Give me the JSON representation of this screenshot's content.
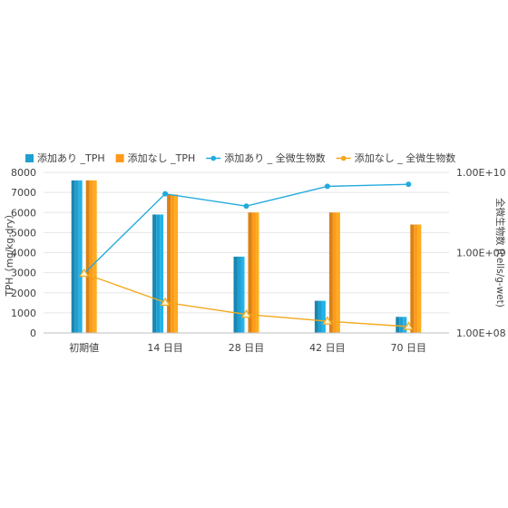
{
  "chart_data": {
    "type": "bar",
    "categories": [
      "初期値",
      "14 日目",
      "28 日目",
      "42 日目",
      "70 日目"
    ],
    "series": [
      {
        "name": "添加あり _TPH",
        "type": "bar",
        "axis": "left",
        "color": "#1f9fd0",
        "values": [
          7600,
          5900,
          3800,
          1600,
          800
        ]
      },
      {
        "name": "添加なし _TPH",
        "type": "bar",
        "axis": "left",
        "color": "#ff9a1a",
        "values": [
          7600,
          6900,
          6000,
          6000,
          5400
        ]
      },
      {
        "name": "添加あり _ 全微生物数",
        "type": "line",
        "axis": "right",
        "color": "#22aadd",
        "marker": "circle",
        "values": [
          550000000,
          5400000000,
          3800000000,
          6700000000,
          7100000000
        ]
      },
      {
        "name": "添加なし _ 全微生物数",
        "type": "line",
        "axis": "right",
        "color": "#f2a81d",
        "marker": "triangle",
        "values": [
          550000000,
          240000000,
          170000000,
          140000000,
          120000000
        ]
      }
    ],
    "y_left": {
      "label": "TPH（mg/kg-dry）",
      "ylim": [
        0,
        8000
      ],
      "ticks": [
        "0",
        "1000",
        "2000",
        "3000",
        "4000",
        "5000",
        "6000",
        "7000",
        "8000"
      ]
    },
    "y_right": {
      "label": "全微生物数 (cells/g-wet)",
      "scale": "log",
      "ylim": [
        100000000,
        10000000000
      ],
      "ticks": [
        "1.00E+08",
        "1.00E+09",
        "1.00E+10"
      ]
    },
    "grid": true,
    "legend_position": "top"
  }
}
